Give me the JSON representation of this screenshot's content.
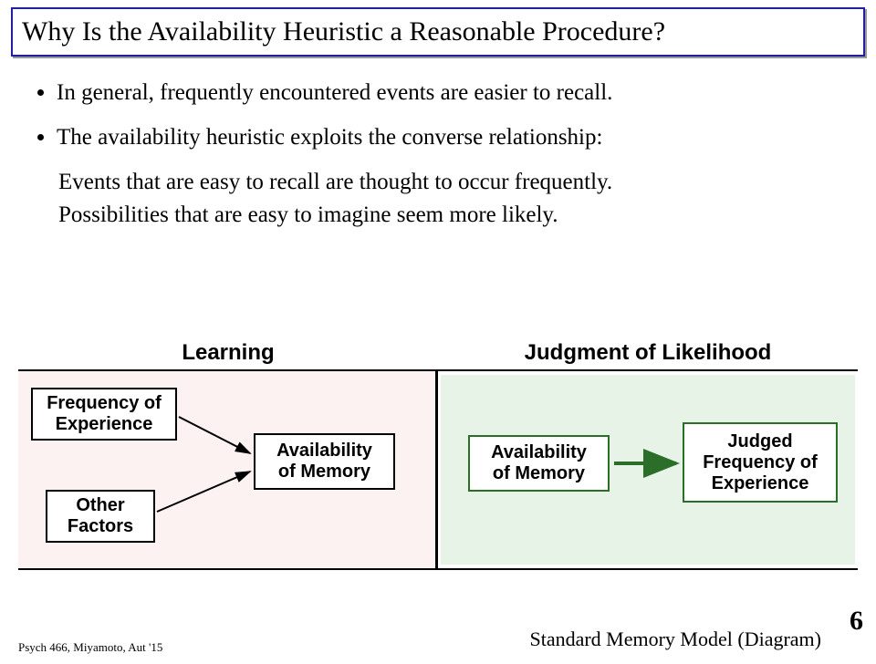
{
  "title": "Why Is the Availability Heuristic a Reasonable Procedure?",
  "bullets": [
    "In general, frequently encountered events are easier to recall.",
    "The availability heuristic exploits the converse relationship:"
  ],
  "follow": [
    "Events that are easy to recall are thought to occur frequently.",
    "Possibilities that are easy to imagine seem more likely."
  ],
  "diagram": {
    "heading_left": "Learning",
    "heading_right": "Judgment of Likelihood",
    "panel_left_bg": "#fdf2f2",
    "panel_right_bg": "#e6f3e6",
    "border_color": "#000000",
    "green_border": "#2a6e2a",
    "boxes": {
      "freq_exp": "Frequency of\nExperience",
      "other": "Other\nFactors",
      "avail_left": "Availability\nof Memory",
      "avail_right": "Availability\nof Memory",
      "judged": "Judged\nFrequency of\nExperience"
    }
  },
  "footer": {
    "left": "Psych 466, Miyamoto, Aut '15",
    "right": "Standard Memory Model (Diagram)",
    "page": "6"
  },
  "style": {
    "title_border": "#2020a0",
    "title_fontsize": 30,
    "body_fontsize": 25,
    "box_fontsize": 20,
    "heading_fontsize": 24
  }
}
